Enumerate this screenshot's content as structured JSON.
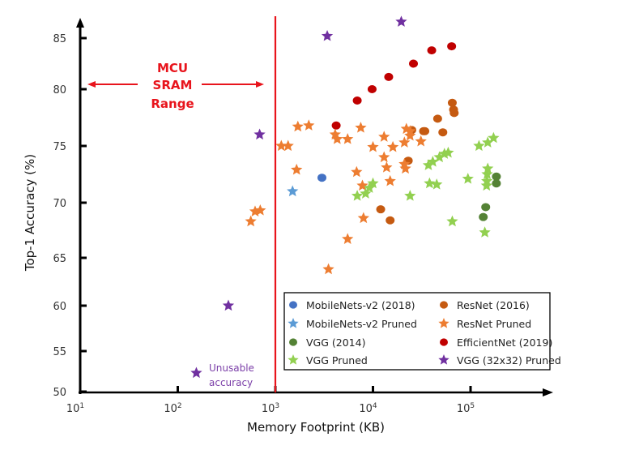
{
  "chart_data": {
    "type": "scatter",
    "title": "",
    "xlabel": "Memory Footprint (KB)",
    "ylabel": "Top-1 Accuracy (%)",
    "xscale": "log",
    "xlim": [
      10,
      1000000
    ],
    "ylim": [
      50,
      87
    ],
    "xticks": [
      {
        "value": 10,
        "base": "10",
        "exp": "1"
      },
      {
        "value": 100,
        "base": "10",
        "exp": "2"
      },
      {
        "value": 1000,
        "base": "10",
        "exp": "3"
      },
      {
        "value": 10000,
        "base": "10",
        "exp": "4"
      },
      {
        "value": 100000,
        "base": "10",
        "exp": "5"
      }
    ],
    "yticks": [
      50,
      55,
      60,
      65,
      70,
      75,
      80,
      85
    ],
    "grid": false,
    "legend_position": "bottom-right",
    "threshold_line": {
      "x": 1000,
      "color": "#e8141c"
    },
    "annotations": {
      "sram": {
        "lines": [
          "MCU",
          "SRAM",
          "Range"
        ],
        "color": "#e8141c"
      },
      "unusable": {
        "lines": [
          "Unusable",
          "accuracy"
        ],
        "color": "#7b3fa8"
      }
    },
    "series": [
      {
        "name": "MobileNets-v2 (2018)",
        "marker": "circle",
        "color": "#4472c4",
        "points": [
          [
            3000,
            72.2
          ]
        ]
      },
      {
        "name": "ResNet (2016)",
        "marker": "circle",
        "color": "#c55a11",
        "points": [
          [
            12000,
            69.4
          ],
          [
            15000,
            68.4
          ],
          [
            23000,
            73.7
          ],
          [
            25000,
            76.4
          ],
          [
            33000,
            76.3
          ],
          [
            46000,
            77.4
          ],
          [
            52000,
            76.2
          ],
          [
            65000,
            78.8
          ],
          [
            67000,
            78.2
          ],
          [
            68000,
            77.9
          ],
          [
            34000,
            76.3
          ]
        ]
      },
      {
        "name": "EfficientNet (2019)",
        "marker": "circle",
        "color": "#c00000",
        "points": [
          [
            4200,
            76.8
          ],
          [
            6900,
            79.0
          ],
          [
            9800,
            80.0
          ],
          [
            14500,
            81.2
          ],
          [
            26000,
            82.5
          ],
          [
            40000,
            83.8
          ],
          [
            64000,
            84.2
          ]
        ]
      },
      {
        "name": "VGG (2014)",
        "marker": "circle",
        "color": "#548235",
        "points": [
          [
            184000,
            72.3
          ],
          [
            184000,
            71.7
          ],
          [
            143000,
            69.6
          ],
          [
            135000,
            68.7
          ]
        ]
      },
      {
        "name": "MobileNets-v2 Pruned",
        "marker": "star",
        "color": "#5b9bd5",
        "points": [
          [
            1500,
            71.0
          ]
        ]
      },
      {
        "name": "ResNet Pruned",
        "marker": "star",
        "color": "#ed7d31",
        "points": [
          [
            560,
            68.3
          ],
          [
            620,
            69.2
          ],
          [
            700,
            69.3
          ],
          [
            1150,
            75.0
          ],
          [
            1350,
            75.0
          ],
          [
            1700,
            76.7
          ],
          [
            2200,
            76.8
          ],
          [
            1650,
            72.9
          ],
          [
            4100,
            76.0
          ],
          [
            4300,
            75.6
          ],
          [
            5500,
            75.6
          ],
          [
            7500,
            76.6
          ],
          [
            6800,
            72.7
          ],
          [
            7800,
            71.5
          ],
          [
            10000,
            74.9
          ],
          [
            13000,
            75.8
          ],
          [
            13000,
            74.0
          ],
          [
            16000,
            74.9
          ],
          [
            13800,
            73.1
          ],
          [
            22000,
            76.5
          ],
          [
            24000,
            76.3
          ],
          [
            24000,
            75.9
          ],
          [
            21000,
            75.3
          ],
          [
            31000,
            75.4
          ],
          [
            21000,
            73.4
          ],
          [
            21500,
            73.0
          ],
          [
            15000,
            71.9
          ],
          [
            8000,
            68.6
          ],
          [
            5500,
            66.7
          ],
          [
            3500,
            63.8
          ]
        ]
      },
      {
        "name": "VGG Pruned",
        "marker": "star",
        "color": "#92d050",
        "points": [
          [
            6900,
            70.6
          ],
          [
            8400,
            70.8
          ],
          [
            9200,
            71.3
          ],
          [
            10000,
            71.7
          ],
          [
            24000,
            70.6
          ],
          [
            37000,
            73.3
          ],
          [
            41000,
            73.6
          ],
          [
            48000,
            74.0
          ],
          [
            54000,
            74.3
          ],
          [
            59000,
            74.4
          ],
          [
            38000,
            71.7
          ],
          [
            45000,
            71.6
          ],
          [
            65000,
            68.3
          ],
          [
            94000,
            72.1
          ],
          [
            122000,
            75.0
          ],
          [
            150000,
            75.3
          ],
          [
            172000,
            75.7
          ],
          [
            150000,
            73.0
          ],
          [
            148000,
            72.5
          ],
          [
            147000,
            71.9
          ],
          [
            146000,
            71.5
          ],
          [
            140000,
            67.3
          ]
        ]
      },
      {
        "name": "VGG (32x32) Pruned",
        "marker": "star",
        "color": "#7030a0",
        "points": [
          [
            155,
            52.3
          ],
          [
            330,
            60.0
          ],
          [
            690,
            76.0
          ],
          [
            3400,
            85.2
          ],
          [
            19500,
            86.6
          ]
        ]
      }
    ],
    "legend_order": [
      [
        "MobileNets-v2 (2018)",
        "ResNet (2016)"
      ],
      [
        "MobileNets-v2 Pruned",
        "ResNet Pruned"
      ],
      [
        "VGG (2014)",
        "EfficientNet (2019)"
      ],
      [
        "VGG Pruned",
        "VGG (32x32) Pruned"
      ]
    ]
  }
}
